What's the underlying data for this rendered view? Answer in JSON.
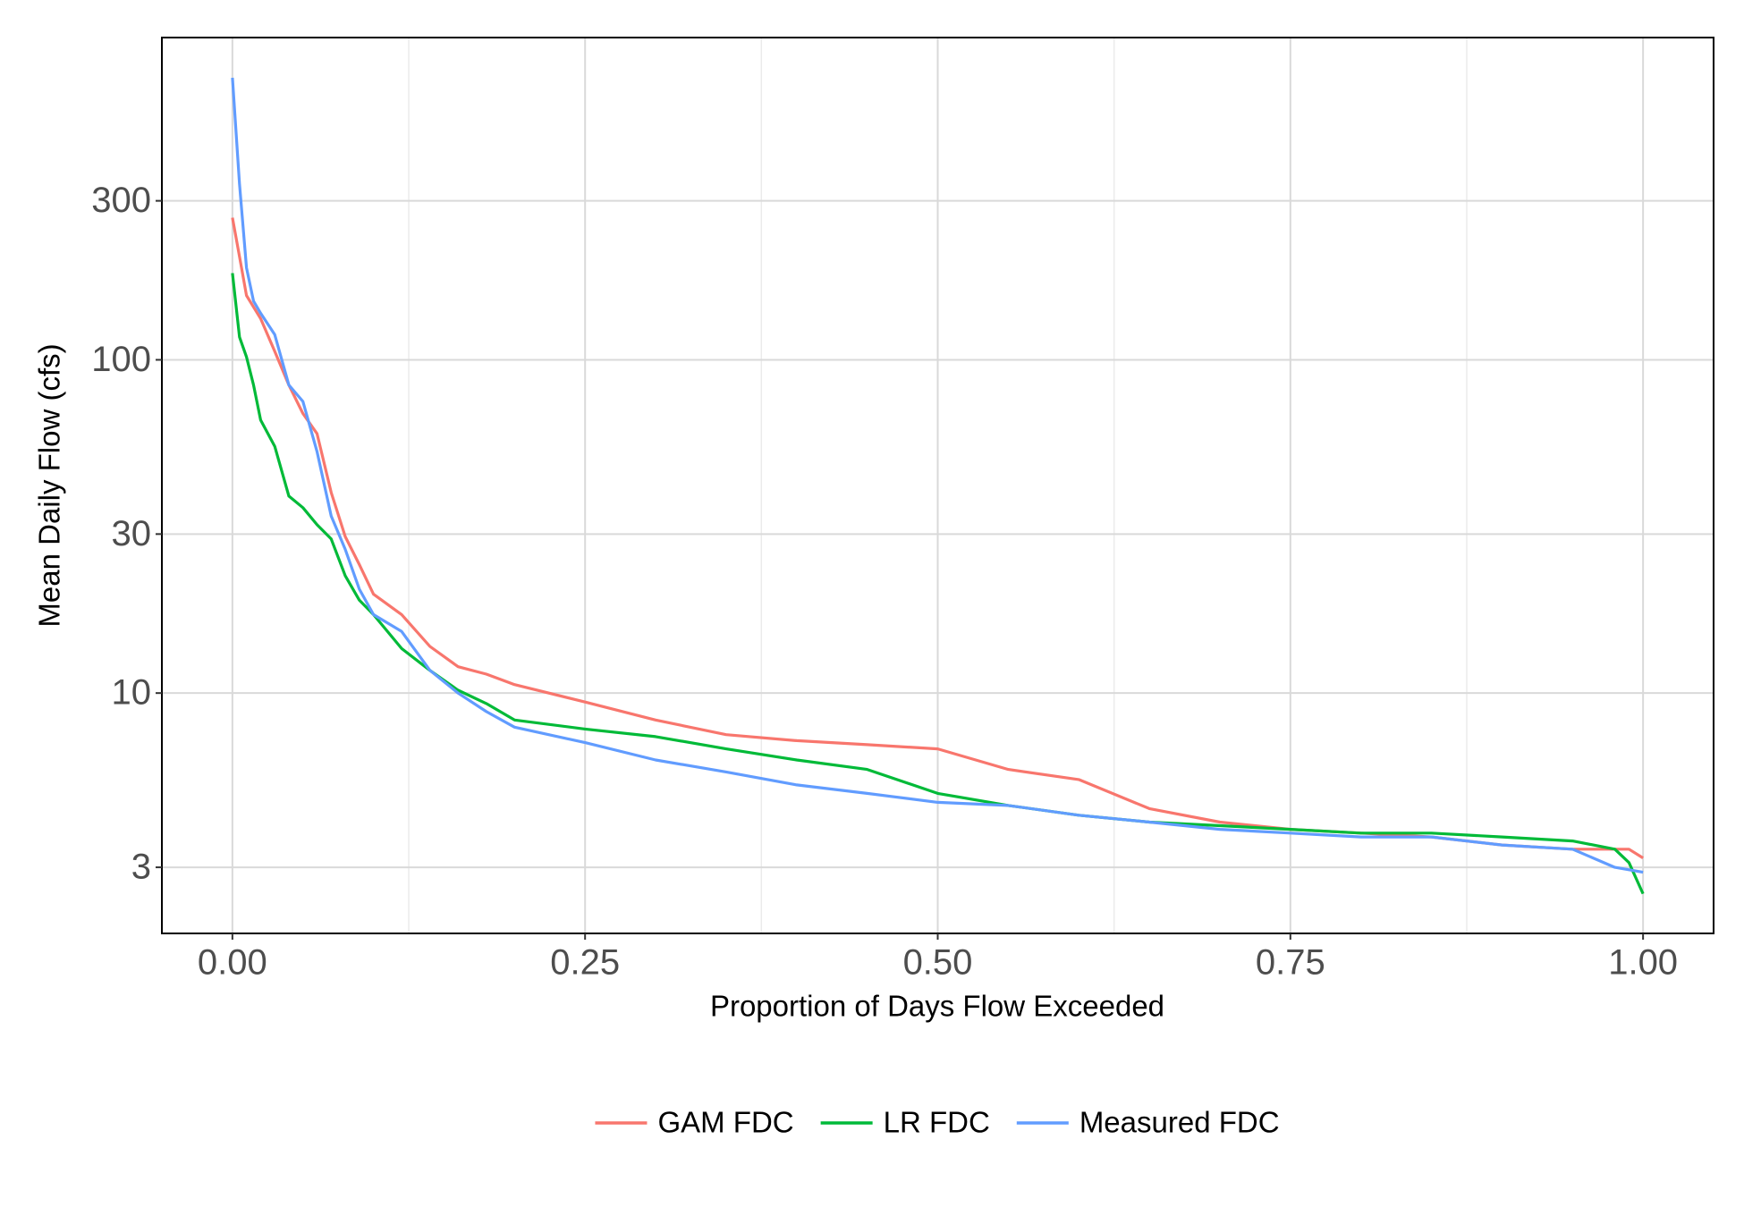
{
  "chart_data": {
    "type": "line",
    "x_label": "Proportion of Days Flow Exceeded",
    "y_label": "Mean Daily Flow (cfs)",
    "y_log": true,
    "grid": true,
    "legend_position": "bottom",
    "xlim": [
      -0.05,
      1.05
    ],
    "xticks": [
      {
        "value": 0,
        "label": "0.00"
      },
      {
        "value": 0.25,
        "label": "0.25"
      },
      {
        "value": 0.5,
        "label": "0.50"
      },
      {
        "value": 0.75,
        "label": "0.75"
      },
      {
        "value": 1,
        "label": "1.00"
      }
    ],
    "ylim": [
      1.9,
      927
    ],
    "yticks": [
      3,
      10,
      30,
      100,
      300
    ],
    "x": [
      0,
      0.005,
      0.01,
      0.015,
      0.02,
      0.03,
      0.04,
      0.05,
      0.06,
      0.07,
      0.08,
      0.09,
      0.1,
      0.12,
      0.14,
      0.16,
      0.18,
      0.2,
      0.25,
      0.3,
      0.35,
      0.4,
      0.45,
      0.5,
      0.55,
      0.6,
      0.65,
      0.7,
      0.75,
      0.8,
      0.85,
      0.9,
      0.95,
      0.98,
      0.99,
      1.0
    ],
    "series": [
      {
        "name": "GAM FDC",
        "color": "#f8766d",
        "values": [
          267,
          204,
          156,
          144,
          133,
          106,
          84,
          69,
          60,
          40,
          29.5,
          24.3,
          19.8,
          17.2,
          13.8,
          12.0,
          11.4,
          10.6,
          9.4,
          8.3,
          7.5,
          7.2,
          7.0,
          6.8,
          5.9,
          5.5,
          4.5,
          4.1,
          3.9,
          3.8,
          3.7,
          3.5,
          3.4,
          3.4,
          3.4,
          3.2
        ]
      },
      {
        "name": "LR FDC",
        "color": "#00ba38",
        "values": [
          182,
          117,
          102,
          84,
          66,
          55,
          39,
          36,
          32,
          29,
          22.5,
          19,
          17.2,
          13.6,
          11.7,
          10.2,
          9.3,
          8.3,
          7.8,
          7.4,
          6.8,
          6.3,
          5.9,
          5.0,
          4.6,
          4.3,
          4.1,
          4.0,
          3.9,
          3.8,
          3.8,
          3.7,
          3.6,
          3.4,
          3.1,
          2.5
        ]
      },
      {
        "name": "Measured FDC",
        "color": "#619cff",
        "values": [
          702,
          337,
          189,
          150,
          138,
          119,
          84,
          75,
          53,
          34,
          27,
          20.5,
          17.2,
          15.3,
          11.7,
          10,
          8.8,
          7.9,
          7.1,
          6.3,
          5.8,
          5.3,
          5.0,
          4.7,
          4.6,
          4.3,
          4.1,
          3.9,
          3.8,
          3.7,
          3.7,
          3.5,
          3.4,
          3.0,
          2.95,
          2.9
        ]
      }
    ]
  }
}
